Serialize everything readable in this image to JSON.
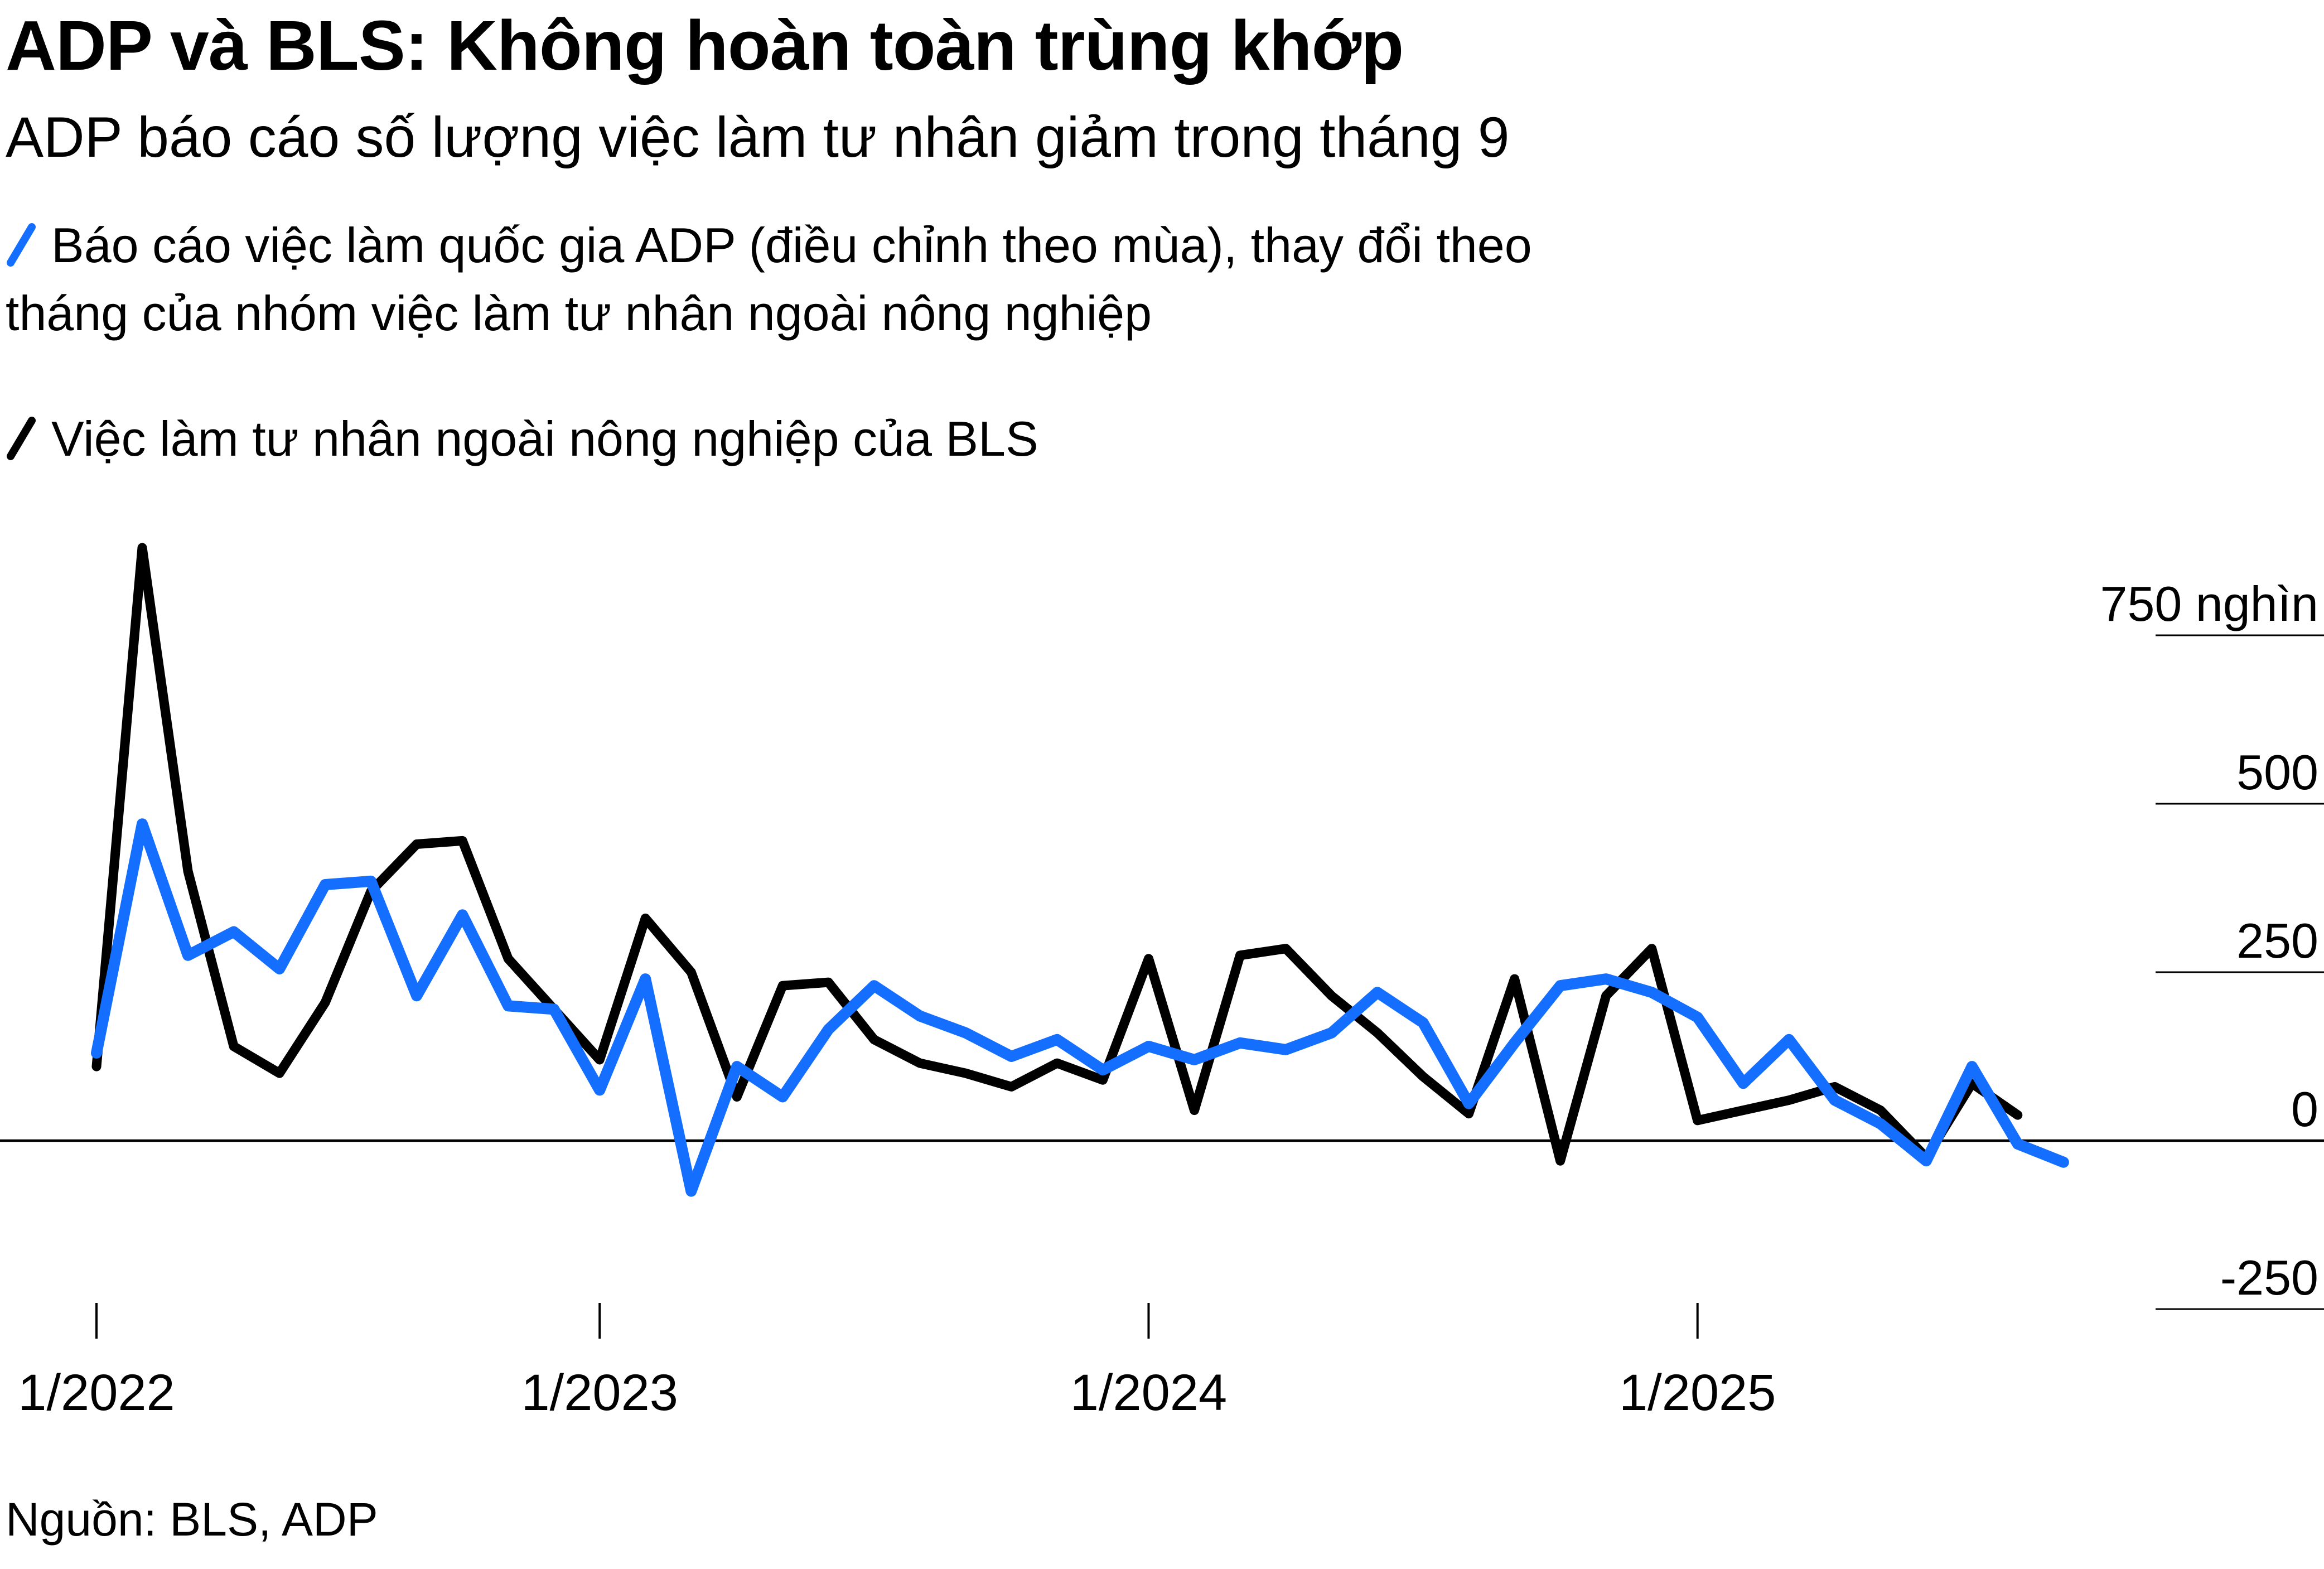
{
  "header": {
    "title": "ADP và BLS: Không hoàn toàn trùng khớp",
    "subtitle": "ADP báo cáo số lượng việc làm tư nhân giảm trong tháng 9"
  },
  "legend": {
    "items": [
      {
        "icon": "slash-icon",
        "color": "#146EFF",
        "text": "Báo cáo việc làm quốc gia ADP (điều chỉnh theo mùa), thay đổi theo tháng của nhóm việc làm tư nhân ngoài nông nghiệp"
      },
      {
        "icon": "slash-icon",
        "color": "#000000",
        "text": "Việc làm tư nhân ngoài nông nghiệp của BLS"
      }
    ]
  },
  "source": "Nguồn: BLS, ADP",
  "chart_data": {
    "type": "line",
    "title": "ADP và BLS: Không hoàn toàn trùng khớp",
    "subtitle": "ADP báo cáo số lượng việc làm tư nhân giảm trong tháng 9",
    "unit": "nghìn (thousands of jobs, monthly change)",
    "xlabel": "",
    "ylabel": "",
    "ylim": [
      -330,
      980
    ],
    "grid": false,
    "legend_position": "top-left",
    "x": [
      "1/2022",
      "2/2022",
      "3/2022",
      "4/2022",
      "5/2022",
      "6/2022",
      "8/2022",
      "9/2022",
      "10/2022",
      "11/2022",
      "12/2022",
      "1/2023",
      "2/2023",
      "3/2023",
      "4/2023",
      "5/2023",
      "6/2023",
      "7/2023",
      "8/2023",
      "9/2023",
      "10/2023",
      "11/2023",
      "12/2023",
      "1/2024",
      "2/2024",
      "3/2024",
      "4/2024",
      "5/2024",
      "6/2024",
      "7/2024",
      "8/2024",
      "9/2024",
      "10/2024",
      "11/2024",
      "12/2024",
      "1/2025",
      "2/2025",
      "3/2025",
      "4/2025",
      "5/2025",
      "6/2025",
      "7/2025",
      "8/2025",
      "9/2025"
    ],
    "x_tick_labels": [
      "1/2022",
      "1/2023",
      "1/2024",
      "1/2025"
    ],
    "y_ticks": [
      {
        "value": 750,
        "label": "750 nghìn"
      },
      {
        "value": 500,
        "label": "500"
      },
      {
        "value": 250,
        "label": "250"
      },
      {
        "value": 0,
        "label": "0"
      },
      {
        "value": -250,
        "label": "-250"
      }
    ],
    "series": [
      {
        "name": "BLS",
        "full_name": "Việc làm tư nhân ngoài nông nghiệp của BLS",
        "color": "#000000",
        "stroke_width": 17,
        "values": [
          110,
          880,
          400,
          140,
          100,
          205,
          370,
          440,
          445,
          270,
          195,
          120,
          330,
          250,
          65,
          230,
          235,
          150,
          115,
          100,
          80,
          115,
          90,
          270,
          45,
          275,
          285,
          215,
          160,
          95,
          40,
          240,
          -30,
          215,
          285,
          30,
          45,
          60,
          80,
          45,
          -25,
          85,
          38,
          null
        ]
      },
      {
        "name": "ADP",
        "full_name": "Báo cáo việc làm quốc gia ADP (điều chỉnh theo mùa), thay đổi theo tháng của nhóm việc làm tư nhân ngoài nông nghiệp",
        "color": "#146EFF",
        "stroke_width": 20,
        "values": [
          130,
          470,
          275,
          310,
          255,
          380,
          385,
          215,
          335,
          200,
          195,
          75,
          240,
          -75,
          110,
          65,
          165,
          230,
          185,
          160,
          125,
          150,
          105,
          140,
          120,
          145,
          135,
          160,
          220,
          175,
          55,
          145,
          230,
          240,
          220,
          183,
          85,
          150,
          60,
          25,
          -30,
          110,
          -5,
          -32
        ]
      }
    ]
  }
}
